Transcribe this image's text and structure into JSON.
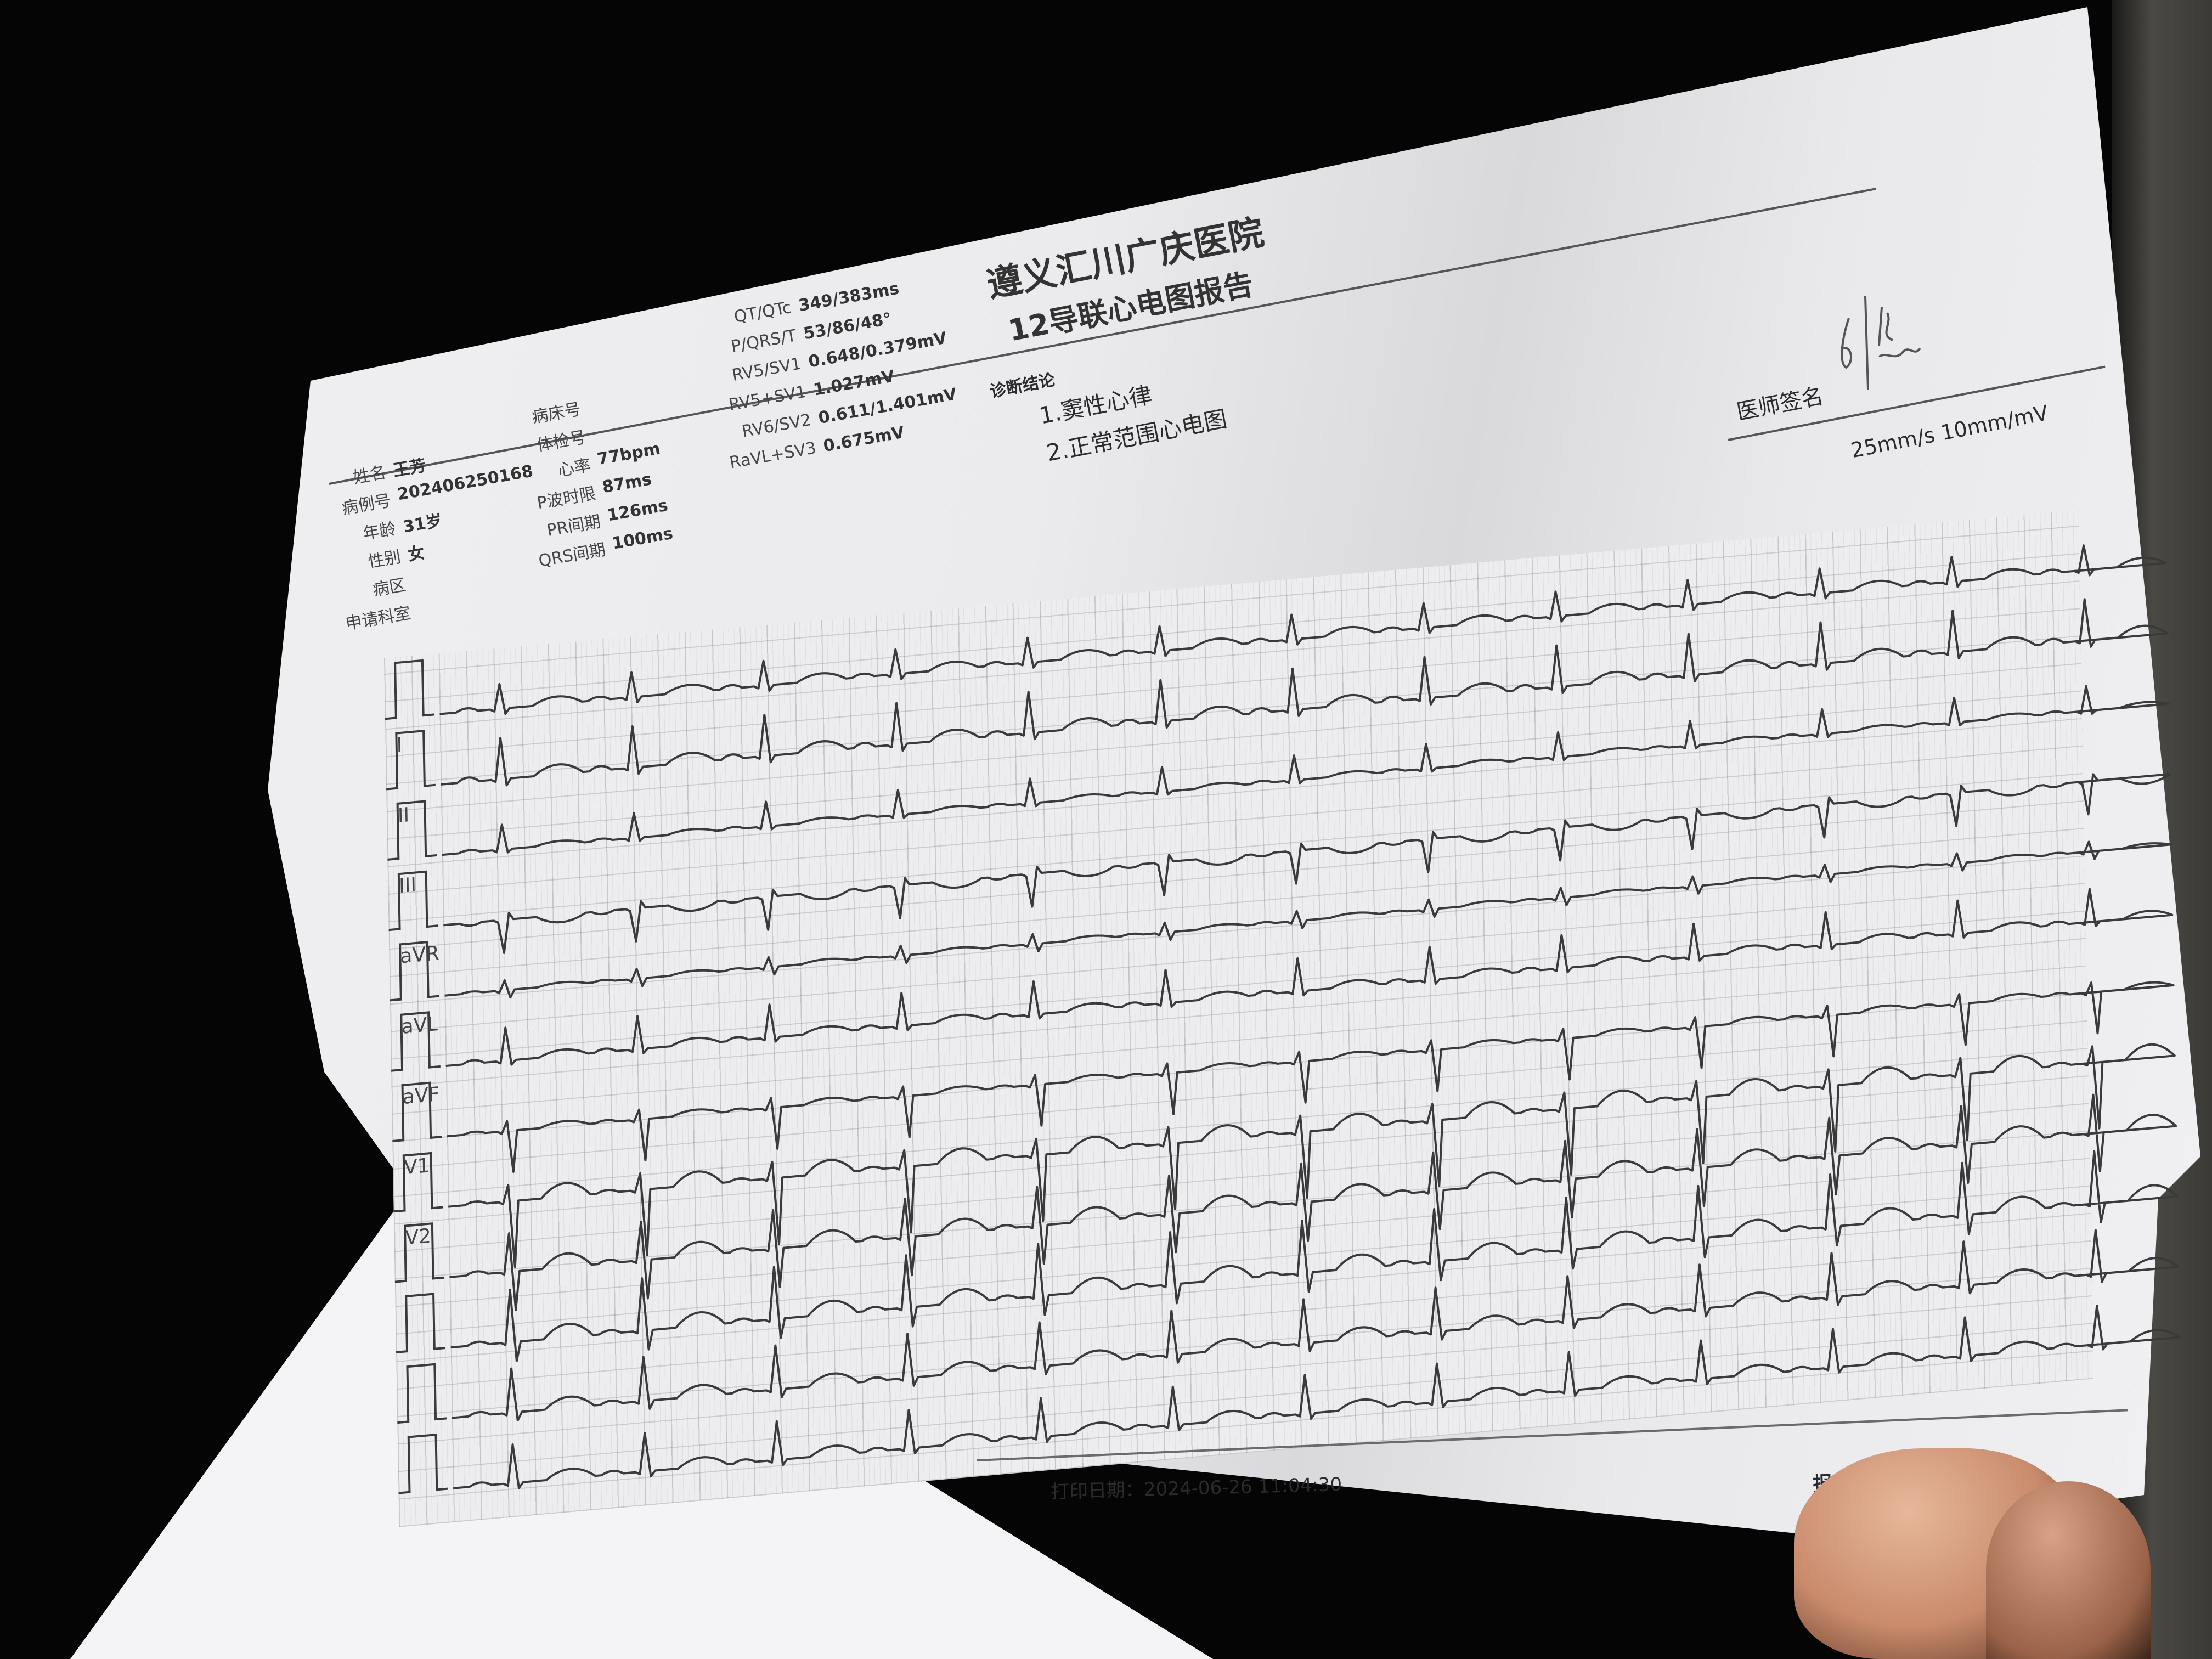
{
  "report": {
    "hospital": "遵义汇川广庆医院",
    "title": "12导联心电图报告",
    "patient": [
      {
        "label": "姓名",
        "value": "王芳"
      },
      {
        "label": "病例号",
        "value": "202406250168"
      },
      {
        "label": "年龄",
        "value": "31岁"
      },
      {
        "label": "性别",
        "value": "女"
      },
      {
        "label": "病区",
        "value": ""
      },
      {
        "label": "申请科室",
        "value": ""
      }
    ],
    "exam": [
      {
        "label": "病床号",
        "value": ""
      },
      {
        "label": "体检号",
        "value": ""
      },
      {
        "label": "心率",
        "value": "77bpm"
      },
      {
        "label": "P波时限",
        "value": "87ms"
      },
      {
        "label": "PR间期",
        "value": "126ms"
      },
      {
        "label": "QRS间期",
        "value": "100ms"
      }
    ],
    "measurements": [
      {
        "label": "QT/QTc",
        "value": "349/383ms"
      },
      {
        "label": "P/QRS/T",
        "value": "53/86/48°"
      },
      {
        "label": "RV5/SV1",
        "value": "0.648/0.379mV"
      },
      {
        "label": "RV5+SV1",
        "value": "1.027mV"
      },
      {
        "label": "RV6/SV2",
        "value": "0.611/1.401mV"
      },
      {
        "label": "RaVL+SV3",
        "value": "0.675mV"
      }
    ],
    "diagnosis": {
      "heading": "诊断结论",
      "items": [
        "1.窦性心律",
        "2.正常范围心电图"
      ]
    },
    "signature_label": "医师签名",
    "signature_name": "刘杰",
    "speed_gain": "25mm/s  10mm/mV",
    "print_date": "打印日期：2024-06-26 11:04:30",
    "notice": "报告需医生确认"
  },
  "ecg": {
    "lead_labels": [
      "I",
      "II",
      "III",
      "aVR",
      "aVL",
      "aVF",
      "V1",
      "V2"
    ],
    "trace_color": "#3a3a3a",
    "heart_rate_bpm": 77
  }
}
